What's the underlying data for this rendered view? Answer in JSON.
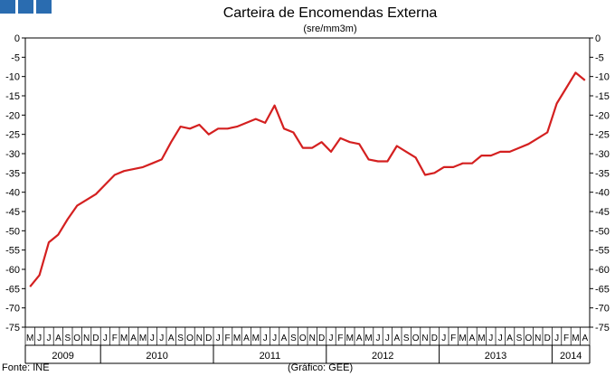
{
  "chart_data": {
    "type": "line",
    "title": "Carteira de Encomendas Externa",
    "subtitle": "(sre/mm3m)",
    "ylim": [
      -75,
      0
    ],
    "yticks": [
      0,
      -5,
      -10,
      -15,
      -20,
      -25,
      -30,
      -35,
      -40,
      -45,
      -50,
      -55,
      -60,
      -65,
      -70,
      -75
    ],
    "grid": false,
    "month_labels": [
      "M",
      "J",
      "J",
      "A",
      "S",
      "O",
      "N",
      "D",
      "J",
      "F",
      "M",
      "A",
      "M",
      "J",
      "J",
      "A",
      "S",
      "O",
      "N",
      "D",
      "J",
      "F",
      "M",
      "A",
      "M",
      "J",
      "J",
      "A",
      "S",
      "O",
      "N",
      "D",
      "J",
      "F",
      "M",
      "A",
      "M",
      "J",
      "J",
      "A",
      "S",
      "O",
      "N",
      "D",
      "J",
      "F",
      "M",
      "A",
      "M",
      "J",
      "J",
      "A",
      "S",
      "O",
      "N",
      "D",
      "J",
      "F",
      "M",
      "A"
    ],
    "years": [
      {
        "label": "2009",
        "months": 8
      },
      {
        "label": "2010",
        "months": 12
      },
      {
        "label": "2011",
        "months": 12
      },
      {
        "label": "2012",
        "months": 12
      },
      {
        "label": "2013",
        "months": 12
      },
      {
        "label": "2014",
        "months": 4
      }
    ],
    "series": [
      {
        "color": "#d42020",
        "values": [
          -64.5,
          -61.5,
          -53,
          -51,
          -47,
          -43.5,
          -42,
          -40.5,
          -38,
          -35.5,
          -34.5,
          -34,
          -33.5,
          -32.5,
          -31.5,
          -27,
          -23,
          -23.5,
          -22.5,
          -25,
          -23.5,
          -23.5,
          -23,
          -22,
          -21,
          -22,
          -17.5,
          -23.5,
          -24.5,
          -28.5,
          -28.5,
          -27,
          -29.5,
          -26,
          -27,
          -27.5,
          -31.5,
          -32,
          -32,
          -28,
          -29.5,
          -31,
          -35.5,
          -35,
          -33.5,
          -33.5,
          -32.5,
          -32.5,
          -30.5,
          -30.5,
          -29.5,
          -29.5,
          -28.5,
          -27.5,
          -26,
          -24.5,
          -17,
          -13,
          -9,
          -11
        ]
      }
    ]
  },
  "footer": {
    "source": "Fonte: INE",
    "credit": "(Gráfico: GEE)"
  }
}
